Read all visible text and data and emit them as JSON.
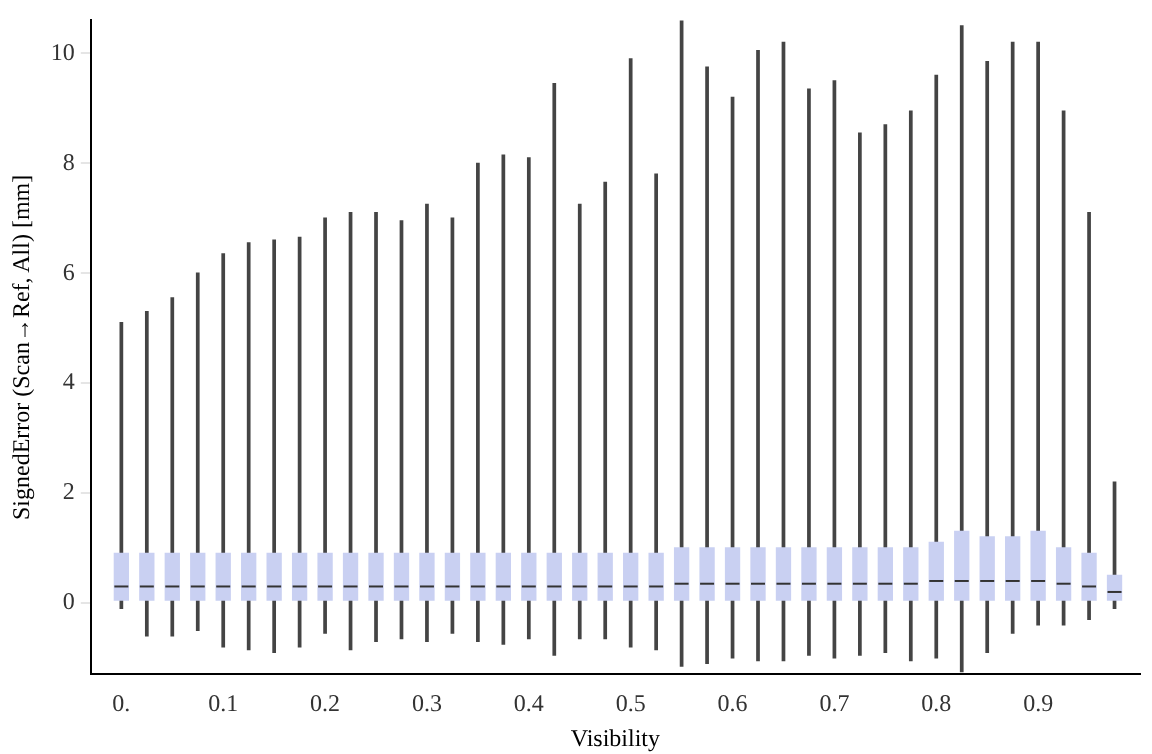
{
  "chart_data": {
    "type": "box",
    "xlabel": "Visibility",
    "ylabel": "SignedError (Scan→Ref, All) [mm]",
    "color": "#c9d0f2",
    "x": [
      0,
      0.025,
      0.05,
      0.075,
      0.1,
      0.125,
      0.15,
      0.175,
      0.2,
      0.225,
      0.25,
      0.275,
      0.3,
      0.325,
      0.35,
      0.375,
      0.4,
      0.425,
      0.45,
      0.475,
      0.5,
      0.525,
      0.55,
      0.575,
      0.6,
      0.625,
      0.65,
      0.675,
      0.7,
      0.725,
      0.75,
      0.775,
      0.8,
      0.825,
      0.85,
      0.875,
      0.9,
      0.925,
      0.95,
      0.975
    ],
    "boxes": [
      {
        "low": -0.1,
        "q1": 0.05,
        "median": 0.3,
        "q3": 0.9,
        "high": 5.1
      },
      {
        "low": -0.6,
        "q1": 0.05,
        "median": 0.3,
        "q3": 0.9,
        "high": 5.3
      },
      {
        "low": -0.6,
        "q1": 0.05,
        "median": 0.3,
        "q3": 0.9,
        "high": 5.55
      },
      {
        "low": -0.5,
        "q1": 0.05,
        "median": 0.3,
        "q3": 0.9,
        "high": 6
      },
      {
        "low": -0.8,
        "q1": 0.05,
        "median": 0.3,
        "q3": 0.9,
        "high": 6.35
      },
      {
        "low": -0.85,
        "q1": 0.05,
        "median": 0.3,
        "q3": 0.9,
        "high": 6.55
      },
      {
        "low": -0.9,
        "q1": 0.05,
        "median": 0.3,
        "q3": 0.9,
        "high": 6.6
      },
      {
        "low": -0.8,
        "q1": 0.05,
        "median": 0.3,
        "q3": 0.9,
        "high": 6.65
      },
      {
        "low": -0.55,
        "q1": 0.05,
        "median": 0.3,
        "q3": 0.9,
        "high": 7
      },
      {
        "low": -0.85,
        "q1": 0.05,
        "median": 0.3,
        "q3": 0.9,
        "high": 7.1
      },
      {
        "low": -0.7,
        "q1": 0.05,
        "median": 0.3,
        "q3": 0.9,
        "high": 7.1
      },
      {
        "low": -0.65,
        "q1": 0.05,
        "median": 0.3,
        "q3": 0.9,
        "high": 6.95
      },
      {
        "low": -0.7,
        "q1": 0.05,
        "median": 0.3,
        "q3": 0.9,
        "high": 7.25
      },
      {
        "low": -0.55,
        "q1": 0.05,
        "median": 0.3,
        "q3": 0.9,
        "high": 7
      },
      {
        "low": -0.7,
        "q1": 0.05,
        "median": 0.3,
        "q3": 0.9,
        "high": 8
      },
      {
        "low": -0.75,
        "q1": 0.05,
        "median": 0.3,
        "q3": 0.9,
        "high": 8.15
      },
      {
        "low": -0.65,
        "q1": 0.05,
        "median": 0.3,
        "q3": 0.9,
        "high": 8.1
      },
      {
        "low": -0.95,
        "q1": 0.05,
        "median": 0.3,
        "q3": 0.9,
        "high": 9.45
      },
      {
        "low": -0.65,
        "q1": 0.05,
        "median": 0.3,
        "q3": 0.9,
        "high": 7.25
      },
      {
        "low": -0.65,
        "q1": 0.05,
        "median": 0.3,
        "q3": 0.9,
        "high": 7.65
      },
      {
        "low": -0.8,
        "q1": 0.05,
        "median": 0.3,
        "q3": 0.9,
        "high": 9.9
      },
      {
        "low": -0.85,
        "q1": 0.05,
        "median": 0.3,
        "q3": 0.9,
        "high": 7.8
      },
      {
        "low": -1.15,
        "q1": 0.05,
        "median": 0.35,
        "q3": 1
      },
      {
        "low": -1.1,
        "q1": 0.05,
        "median": 0.35,
        "q3": 1,
        "high": 9.75
      },
      {
        "low": -1,
        "q1": 0.05,
        "median": 0.35,
        "q3": 1,
        "high": 9.2
      },
      {
        "low": -1.05,
        "q1": 0.05,
        "median": 0.35,
        "q3": 1,
        "high": 10.05
      },
      {
        "low": -1.05,
        "q1": 0.05,
        "median": 0.35,
        "q3": 1,
        "high": 10.2
      },
      {
        "low": -0.95,
        "q1": 0.05,
        "median": 0.35,
        "q3": 1,
        "high": 9.35
      },
      {
        "low": -1,
        "q1": 0.05,
        "median": 0.35,
        "q3": 1,
        "high": 9.5
      },
      {
        "low": -0.95,
        "q1": 0.05,
        "median": 0.35,
        "q3": 1,
        "high": 8.55
      },
      {
        "low": -0.9,
        "q1": 0.05,
        "median": 0.35,
        "q3": 1,
        "high": 8.7
      },
      {
        "low": -1.05,
        "q1": 0.05,
        "median": 0.35,
        "q3": 1,
        "high": 8.95
      },
      {
        "low": -1,
        "q1": 0.05,
        "median": 0.4,
        "q3": 1.1,
        "high": 9.6
      },
      {
        "low": -1.25,
        "q1": 0.05,
        "median": 0.4,
        "q3": 1.3,
        "high": 10.5
      },
      {
        "low": -0.9,
        "q1": 0.05,
        "median": 0.4,
        "q3": 1.2,
        "high": 9.85
      },
      {
        "low": -0.55,
        "q1": 0.05,
        "median": 0.4,
        "q3": 1.2,
        "high": 10.2
      },
      {
        "low": -0.4,
        "q1": 0.05,
        "median": 0.4,
        "q3": 1.3,
        "high": 10.2
      },
      {
        "low": -0.4,
        "q1": 0.05,
        "median": 0.35,
        "q3": 1,
        "high": 8.95
      },
      {
        "low": -0.3,
        "q1": 0.05,
        "median": 0.3,
        "q3": 0.9,
        "high": 7.1
      },
      {
        "low": -0.1,
        "q1": 0.05,
        "median": 0.2,
        "q3": 0.5,
        "high": 2.2
      }
    ],
    "xlim": [
      -0.03,
      1.0
    ],
    "xticks": [
      {
        "value": 0,
        "label": "0."
      },
      0.1,
      0.2,
      0.3,
      0.4,
      0.5,
      0.6,
      0.7,
      0.8,
      0.9
    ],
    "ylim": [
      -1.3,
      10.6
    ],
    "yticks": [
      0,
      2,
      4,
      6,
      8,
      10
    ],
    "grid": false
  }
}
